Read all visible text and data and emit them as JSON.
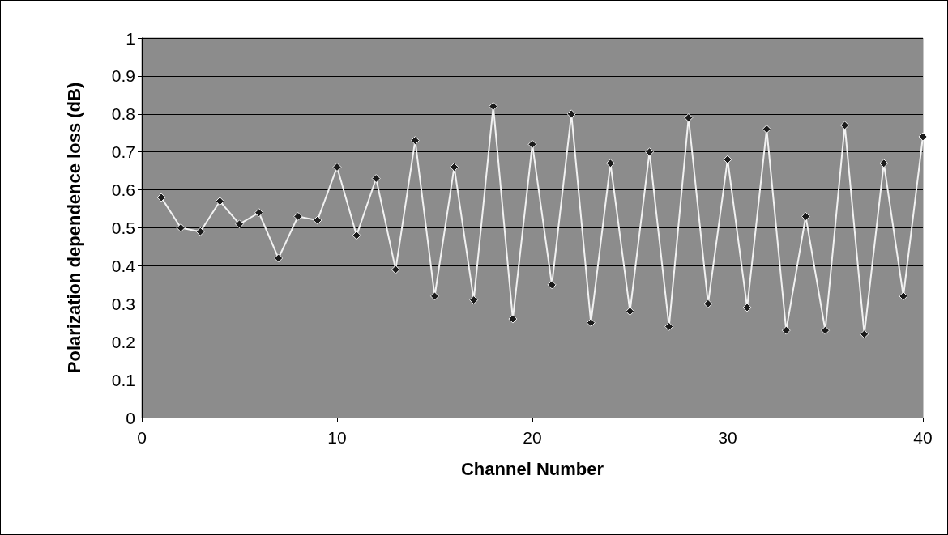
{
  "chart_data": {
    "type": "line",
    "xlabel": "Channel Number",
    "ylabel": "Polarization dependence loss (dB)",
    "x": [
      1,
      2,
      3,
      4,
      5,
      6,
      7,
      8,
      9,
      10,
      11,
      12,
      13,
      14,
      15,
      16,
      17,
      18,
      19,
      20,
      21,
      22,
      23,
      24,
      25,
      26,
      27,
      28,
      29,
      30,
      31,
      32,
      33,
      34,
      35,
      36,
      37,
      38,
      39,
      40
    ],
    "series": [
      {
        "color": "#f2f2f2",
        "values": [
          0.58,
          0.5,
          0.49,
          0.57,
          0.51,
          0.54,
          0.42,
          0.53,
          0.52,
          0.66,
          0.48,
          0.63,
          0.39,
          0.73,
          0.32,
          0.66,
          0.31,
          0.82,
          0.26,
          0.72,
          0.35,
          0.8,
          0.25,
          0.67,
          0.28,
          0.7,
          0.24,
          0.79,
          0.3,
          0.68,
          0.29,
          0.76,
          0.23,
          0.53,
          0.23,
          0.77,
          0.22,
          0.67,
          0.32,
          0.74
        ]
      }
    ],
    "xlim": [
      0,
      40
    ],
    "xticks": [
      0,
      10,
      20,
      30,
      40
    ],
    "ylim": [
      0,
      1
    ],
    "yticks": [
      0,
      0.1,
      0.2,
      0.3,
      0.4,
      0.5,
      0.6,
      0.7,
      0.8,
      0.9,
      1
    ],
    "grid": "y",
    "marker": "diamond",
    "line_style": "solid"
  }
}
